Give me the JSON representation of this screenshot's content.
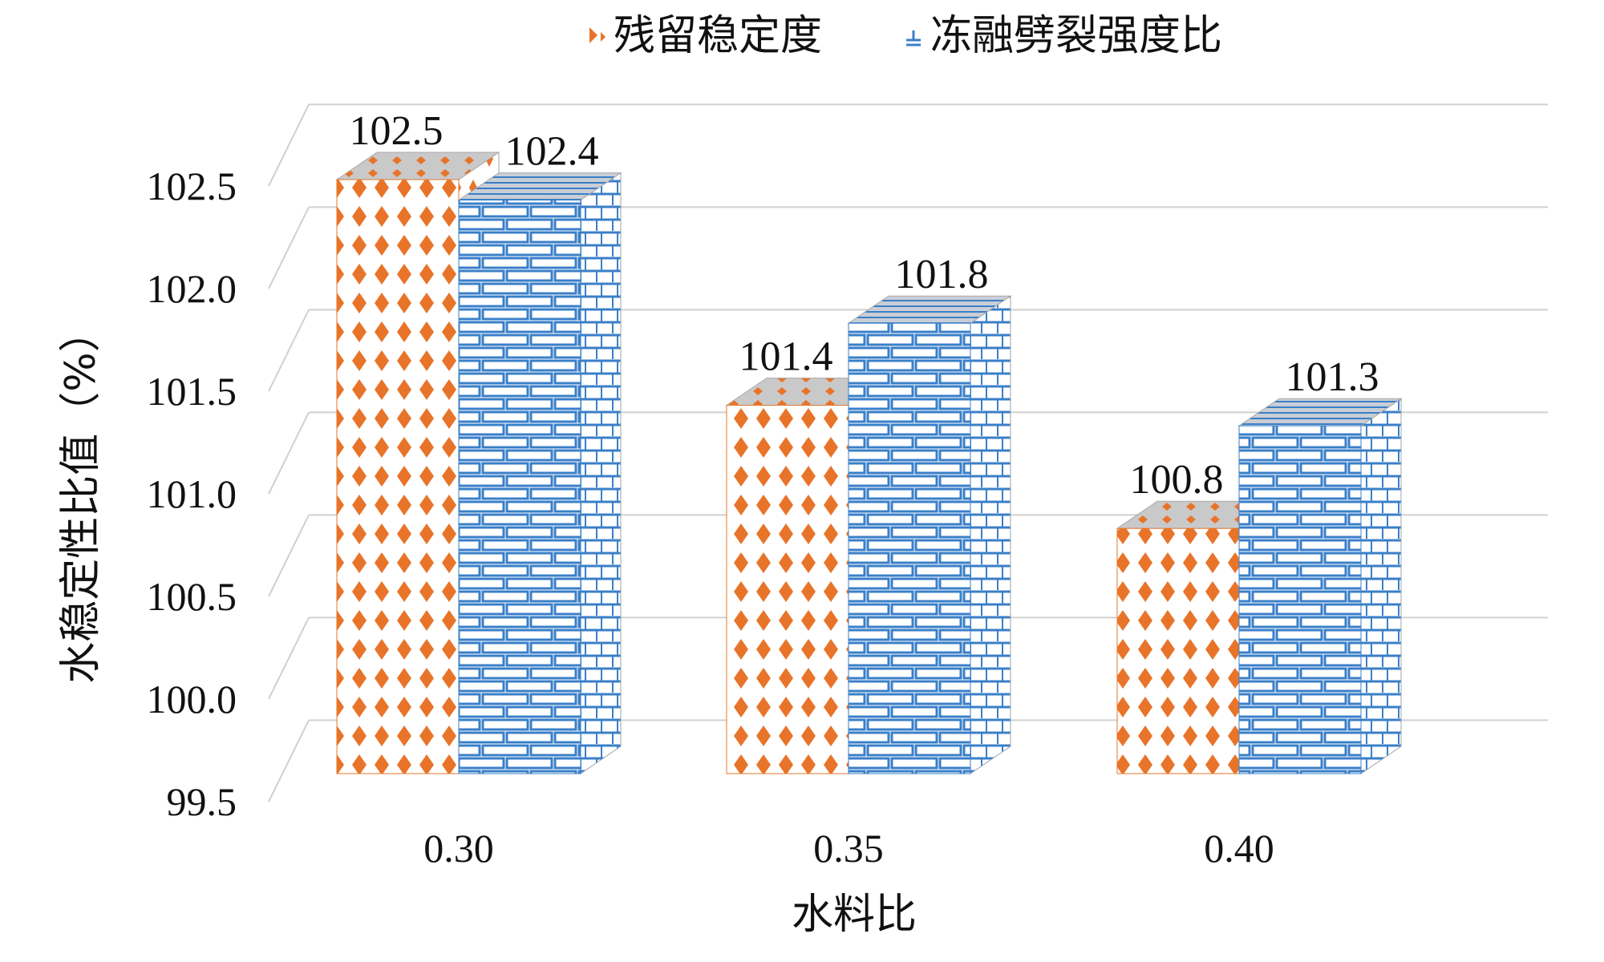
{
  "chart_data": {
    "type": "bar",
    "variant": "3d-clustered-column",
    "categories": [
      "0.30",
      "0.35",
      "0.40"
    ],
    "series": [
      {
        "name": "残留稳定度",
        "values": [
          102.5,
          101.4,
          100.8
        ],
        "color": "#E8742A",
        "pattern": "dots"
      },
      {
        "name": "冻融劈裂强度比",
        "values": [
          102.4,
          101.8,
          101.3
        ],
        "color": "#3A7FC8",
        "pattern": "bricks"
      }
    ],
    "data_labels": [
      "102.5",
      "101.4",
      "100.8",
      "102.4",
      "101.8",
      "101.3"
    ],
    "xlabel": "水料比",
    "ylabel": "水稳定性比值（%）",
    "ylim": [
      99.5,
      102.5
    ],
    "yticks": [
      "99.5",
      "100.0",
      "100.5",
      "101.0",
      "101.5",
      "102.0",
      "102.5"
    ],
    "grid": true,
    "legend_position": "top"
  }
}
